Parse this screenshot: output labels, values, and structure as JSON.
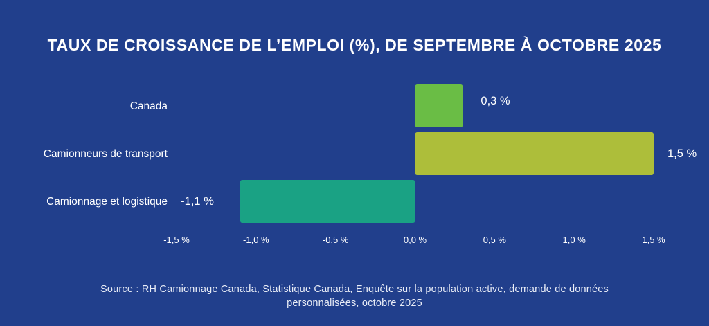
{
  "chart_data": {
    "type": "bar",
    "orientation": "horizontal",
    "title": "TAUX DE CROISSANCE DE L’EMPLOI (%), DE SEPTEMBRE À OCTOBRE 2025",
    "categories": [
      "Canada",
      "Camionneurs de transport",
      "Camionnage et logistique"
    ],
    "values": [
      0.3,
      1.5,
      -1.1
    ],
    "value_labels": [
      "0,3 %",
      "1,5 %",
      "-1,1 %"
    ],
    "bar_colors": [
      "#6abd45",
      "#adbe3a",
      "#1aa284"
    ],
    "xlim": [
      -1.5,
      1.5
    ],
    "xticks": [
      -1.5,
      -1.0,
      -0.5,
      0.0,
      0.5,
      1.0,
      1.5
    ],
    "xtick_labels": [
      "-1,5 %",
      "-1,0 %",
      "-0,5 %",
      "0,0 %",
      "0,5 %",
      "1,0 %",
      "1,5 %"
    ],
    "grid": false,
    "legend": "none",
    "xlabel": "",
    "ylabel": ""
  },
  "source": {
    "line1": "Source : RH Camionnage Canada, Statistique Canada, Enquête sur la population active, demande de données",
    "line2": "personnalisées, octobre 2025"
  }
}
